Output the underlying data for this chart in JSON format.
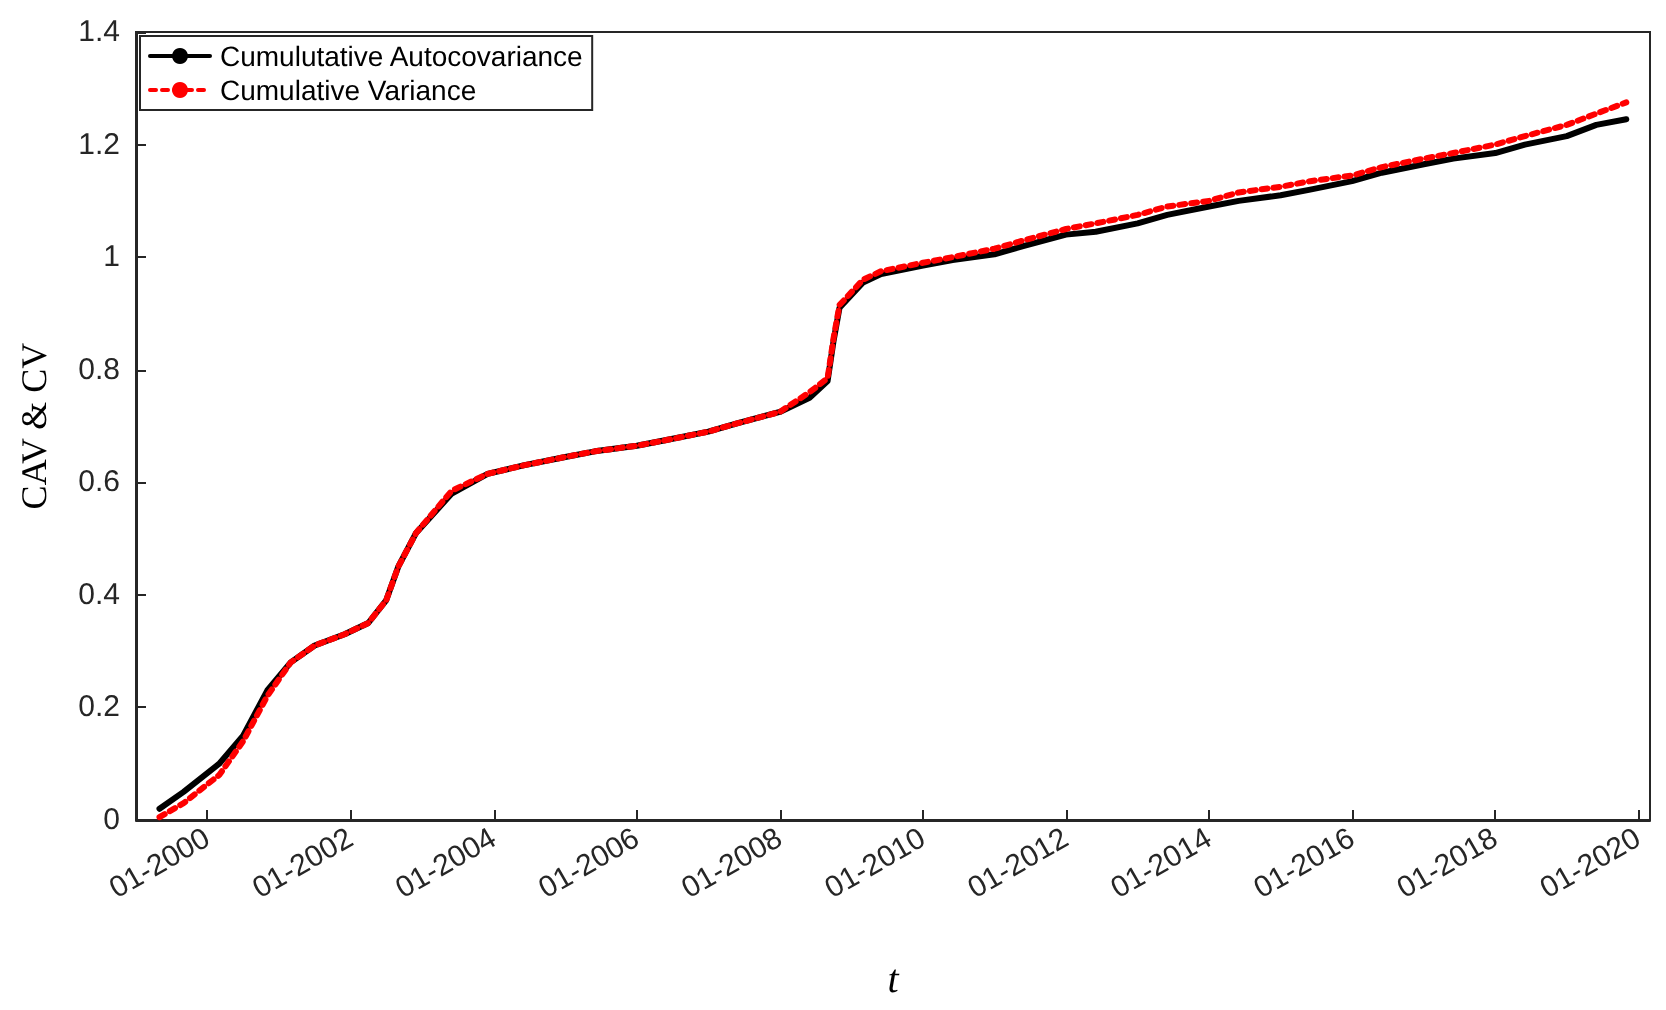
{
  "chart_data": {
    "type": "line",
    "xlabel": "t",
    "ylabel": "CAV & CV",
    "legend": "top left",
    "grid": false,
    "marker": "none",
    "xlim": [
      "1999-01",
      "2020-03"
    ],
    "ylim": [
      0,
      1.4
    ],
    "yticks": [
      0,
      0.2,
      0.4,
      0.6,
      0.8,
      1,
      1.2,
      1.4
    ],
    "xticks": [
      {
        "value": "2000-01",
        "label": "01-2000"
      },
      {
        "value": "2002-01",
        "label": "01-2002"
      },
      {
        "value": "2004-01",
        "label": "01-2004"
      },
      {
        "value": "2006-01",
        "label": "01-2006"
      },
      {
        "value": "2008-01",
        "label": "01-2008"
      },
      {
        "value": "2010-01",
        "label": "01-2010"
      },
      {
        "value": "2012-01",
        "label": "01-2012"
      },
      {
        "value": "2014-01",
        "label": "01-2014"
      },
      {
        "value": "2016-01",
        "label": "01-2016"
      },
      {
        "value": "2018-01",
        "label": "01-2018"
      },
      {
        "value": "2020-01",
        "label": "01-2020"
      }
    ],
    "x": [
      "1999-05",
      "1999-09",
      "2000-03",
      "2000-07",
      "2000-11",
      "2001-03",
      "2001-07",
      "2001-12",
      "2002-04",
      "2002-07",
      "2002-09",
      "2002-12",
      "2003-06",
      "2003-12",
      "2004-06",
      "2005-01",
      "2005-06",
      "2006-01",
      "2006-06",
      "2007-01",
      "2007-06",
      "2008-01",
      "2008-06",
      "2008-09",
      "2008-10",
      "2008-11",
      "2009-03",
      "2009-06",
      "2010-01",
      "2010-06",
      "2011-01",
      "2011-06",
      "2012-01",
      "2012-06",
      "2013-01",
      "2013-06",
      "2014-01",
      "2014-06",
      "2015-01",
      "2015-06",
      "2016-01",
      "2016-06",
      "2017-01",
      "2017-06",
      "2018-01",
      "2018-06",
      "2019-01",
      "2019-06",
      "2019-11"
    ],
    "series": [
      {
        "name": "Cumulutative Autocovariance",
        "color": "#000000",
        "line_style": "solid",
        "values": [
          0.02,
          0.05,
          0.1,
          0.15,
          0.23,
          0.28,
          0.31,
          0.33,
          0.35,
          0.39,
          0.45,
          0.51,
          0.58,
          0.615,
          0.63,
          0.645,
          0.655,
          0.665,
          0.675,
          0.69,
          0.705,
          0.725,
          0.75,
          0.78,
          0.85,
          0.91,
          0.955,
          0.97,
          0.985,
          0.995,
          1.005,
          1.02,
          1.04,
          1.045,
          1.06,
          1.075,
          1.09,
          1.1,
          1.11,
          1.12,
          1.135,
          1.15,
          1.165,
          1.175,
          1.185,
          1.2,
          1.215,
          1.235,
          1.245
        ]
      },
      {
        "name": "Cumulative Variance",
        "color": "#ff0000",
        "line_style": "dotted",
        "values": [
          0.005,
          0.03,
          0.08,
          0.14,
          0.22,
          0.28,
          0.31,
          0.33,
          0.35,
          0.39,
          0.45,
          0.51,
          0.585,
          0.615,
          0.63,
          0.645,
          0.655,
          0.665,
          0.675,
          0.69,
          0.705,
          0.725,
          0.76,
          0.785,
          0.855,
          0.915,
          0.96,
          0.975,
          0.99,
          1.0,
          1.015,
          1.03,
          1.05,
          1.06,
          1.075,
          1.09,
          1.1,
          1.115,
          1.125,
          1.135,
          1.145,
          1.16,
          1.175,
          1.185,
          1.2,
          1.215,
          1.235,
          1.255,
          1.275
        ]
      }
    ]
  }
}
